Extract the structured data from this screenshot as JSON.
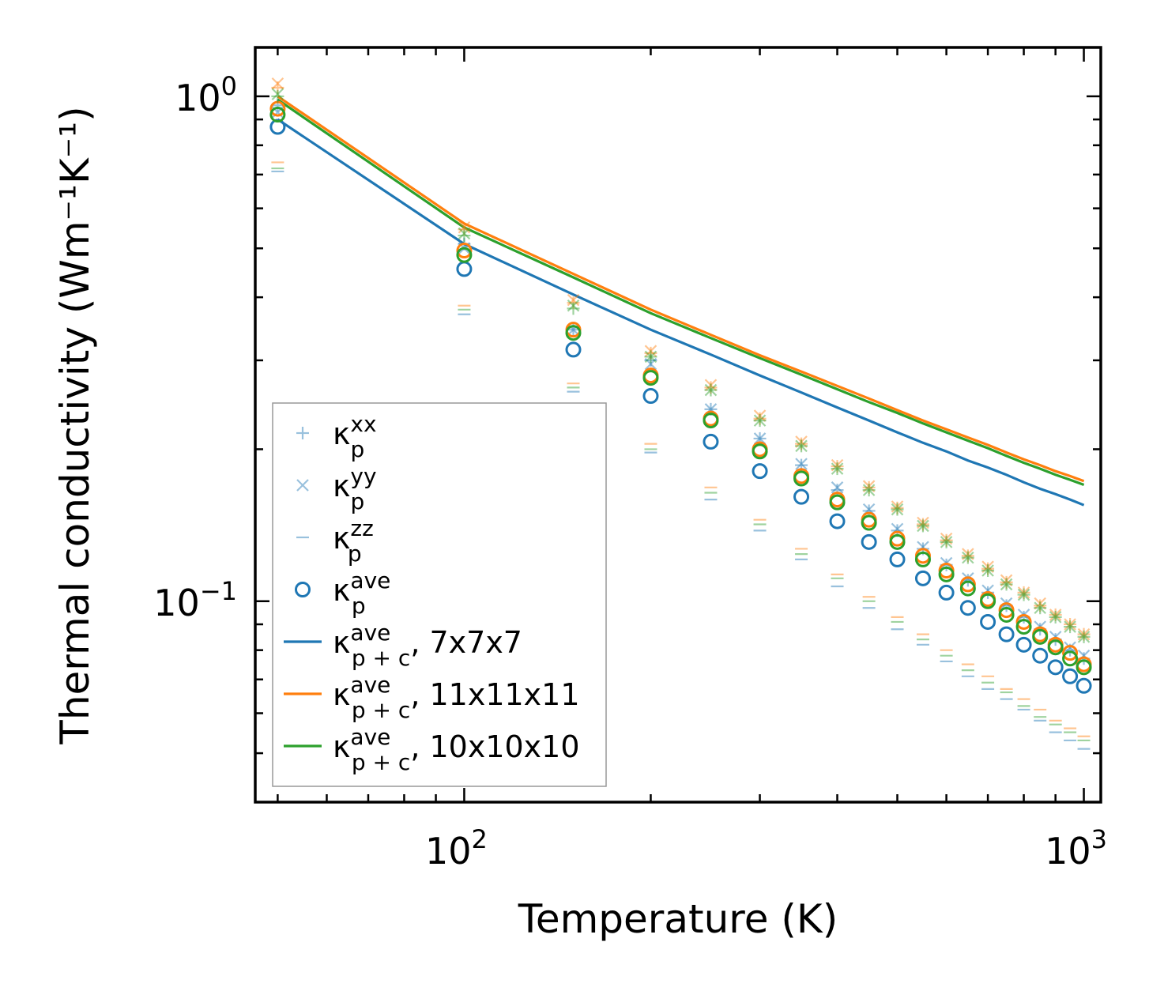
{
  "chart_data": {
    "type": "scatter",
    "title": "",
    "xlabel": "Temperature (K)",
    "ylabel": "Thermal conductivity (Wm⁻¹K⁻¹)",
    "xscale": "log",
    "yscale": "log",
    "xlim": [
      46,
      1065
    ],
    "ylim": [
      0.04,
      1.25
    ],
    "x_ticks": [
      {
        "value": 100,
        "base": "10",
        "exp": "2"
      },
      {
        "value": 1000,
        "base": "10",
        "exp": "3"
      }
    ],
    "y_ticks": [
      {
        "value": 1.0,
        "base": "10",
        "exp": "0"
      },
      {
        "value": 0.1,
        "base": "10",
        "exp": "−1"
      }
    ],
    "temperatures": [
      50,
      100,
      150,
      200,
      250,
      300,
      350,
      400,
      450,
      500,
      550,
      600,
      650,
      700,
      750,
      800,
      850,
      900,
      950,
      1000
    ],
    "series": [
      {
        "name": "kp_xx",
        "supercell": "7x7x7",
        "marker": "+",
        "color": "#1f77b4",
        "values": [
          0.96,
          0.51,
          0.345,
          0.3,
          0.24,
          0.21,
          0.186,
          0.166,
          0.151,
          0.138,
          0.127,
          0.118,
          0.11,
          0.104,
          0.098,
          0.093,
          0.088,
          0.084,
          0.08,
          0.077
        ]
      },
      {
        "name": "kp_yy",
        "supercell": "7x7x7",
        "marker": "x",
        "color": "#1f77b4",
        "values": [
          0.93,
          0.5,
          0.345,
          0.295,
          0.24,
          0.21,
          0.187,
          0.168,
          0.152,
          0.139,
          0.128,
          0.119,
          0.111,
          0.105,
          0.099,
          0.094,
          0.089,
          0.085,
          0.081,
          0.078
        ]
      },
      {
        "name": "kp_zz",
        "supercell": "7x7x7",
        "marker": "_",
        "color": "#1f77b4",
        "values": [
          0.71,
          0.37,
          0.26,
          0.197,
          0.159,
          0.138,
          0.121,
          0.107,
          0.097,
          0.088,
          0.082,
          0.076,
          0.071,
          0.067,
          0.064,
          0.061,
          0.058,
          0.055,
          0.053,
          0.051
        ]
      },
      {
        "name": "kp_ave",
        "supercell": "7x7x7",
        "marker": "o",
        "color": "#1f77b4",
        "values": [
          0.87,
          0.455,
          0.315,
          0.255,
          0.207,
          0.181,
          0.161,
          0.144,
          0.131,
          0.121,
          0.111,
          0.104,
          0.097,
          0.091,
          0.086,
          0.082,
          0.078,
          0.074,
          0.071,
          0.068
        ]
      },
      {
        "name": "kp_xx",
        "supercell": "11x11x11",
        "marker": "+",
        "color": "#ff7f0e",
        "values": [
          1.04,
          0.545,
          0.39,
          0.31,
          0.265,
          0.23,
          0.205,
          0.185,
          0.168,
          0.153,
          0.142,
          0.132,
          0.123,
          0.116,
          0.109,
          0.104,
          0.098,
          0.094,
          0.09,
          0.086
        ]
      },
      {
        "name": "kp_yy",
        "supercell": "11x11x11",
        "marker": "x",
        "color": "#ff7f0e",
        "values": [
          1.06,
          0.55,
          0.395,
          0.313,
          0.268,
          0.233,
          0.207,
          0.186,
          0.169,
          0.154,
          0.143,
          0.133,
          0.124,
          0.117,
          0.11,
          0.104,
          0.099,
          0.094,
          0.09,
          0.086
        ]
      },
      {
        "name": "kp_zz",
        "supercell": "11x11x11",
        "marker": "_",
        "color": "#ff7f0e",
        "values": [
          0.74,
          0.385,
          0.27,
          0.205,
          0.168,
          0.145,
          0.127,
          0.113,
          0.102,
          0.093,
          0.086,
          0.08,
          0.075,
          0.071,
          0.067,
          0.064,
          0.061,
          0.058,
          0.056,
          0.054
        ]
      },
      {
        "name": "kp_ave",
        "supercell": "11x11x11",
        "marker": "o",
        "color": "#ff7f0e",
        "values": [
          0.945,
          0.495,
          0.345,
          0.28,
          0.23,
          0.2,
          0.177,
          0.159,
          0.145,
          0.133,
          0.123,
          0.115,
          0.108,
          0.101,
          0.096,
          0.091,
          0.086,
          0.082,
          0.079,
          0.075
        ]
      },
      {
        "name": "kp_xx",
        "supercell": "10x10x10",
        "marker": "+",
        "color": "#2ca02c",
        "values": [
          1.0,
          0.53,
          0.38,
          0.305,
          0.262,
          0.228,
          0.203,
          0.183,
          0.166,
          0.152,
          0.141,
          0.131,
          0.122,
          0.115,
          0.108,
          0.103,
          0.097,
          0.093,
          0.089,
          0.085
        ]
      },
      {
        "name": "kp_yy",
        "supercell": "10x10x10",
        "marker": "x",
        "color": "#2ca02c",
        "values": [
          1.01,
          0.535,
          0.385,
          0.305,
          0.262,
          0.228,
          0.203,
          0.183,
          0.166,
          0.152,
          0.141,
          0.131,
          0.122,
          0.115,
          0.108,
          0.103,
          0.097,
          0.093,
          0.089,
          0.085
        ]
      },
      {
        "name": "kp_zz",
        "supercell": "10x10x10",
        "marker": "_",
        "color": "#2ca02c",
        "values": [
          0.72,
          0.378,
          0.265,
          0.2,
          0.164,
          0.142,
          0.124,
          0.111,
          0.1,
          0.091,
          0.084,
          0.078,
          0.073,
          0.069,
          0.066,
          0.062,
          0.059,
          0.057,
          0.055,
          0.053
        ]
      },
      {
        "name": "kp_ave",
        "supercell": "10x10x10",
        "marker": "o",
        "color": "#2ca02c",
        "values": [
          0.92,
          0.485,
          0.34,
          0.277,
          0.228,
          0.198,
          0.175,
          0.157,
          0.143,
          0.131,
          0.121,
          0.113,
          0.106,
          0.1,
          0.094,
          0.089,
          0.085,
          0.081,
          0.077,
          0.074
        ]
      },
      {
        "name": "kp+c_ave 7x7x7",
        "marker": "line",
        "color": "#1f77b4",
        "values": [
          0.9,
          0.51,
          0.405,
          0.345,
          0.308,
          0.28,
          0.259,
          0.242,
          0.228,
          0.216,
          0.206,
          0.198,
          0.19,
          0.184,
          0.178,
          0.172,
          0.167,
          0.163,
          0.159,
          0.155
        ]
      },
      {
        "name": "kp+c_ave 11x11x11",
        "marker": "line",
        "color": "#ff7f0e",
        "values": [
          1.0,
          0.56,
          0.445,
          0.378,
          0.337,
          0.307,
          0.285,
          0.267,
          0.252,
          0.239,
          0.228,
          0.219,
          0.211,
          0.204,
          0.197,
          0.191,
          0.186,
          0.181,
          0.177,
          0.173
        ]
      },
      {
        "name": "kp+c_ave 10x10x10",
        "marker": "line",
        "color": "#2ca02c",
        "values": [
          0.985,
          0.55,
          0.438,
          0.372,
          0.332,
          0.303,
          0.281,
          0.263,
          0.248,
          0.236,
          0.225,
          0.216,
          0.208,
          0.201,
          0.194,
          0.188,
          0.183,
          0.178,
          0.174,
          0.17
        ]
      }
    ],
    "legend": {
      "position": "lower-left",
      "entries": [
        {
          "marker": "+",
          "color": "#1f77b4",
          "sup": "xx",
          "sub": "p",
          "suffix": ""
        },
        {
          "marker": "x",
          "color": "#1f77b4",
          "sup": "yy",
          "sub": "p",
          "suffix": ""
        },
        {
          "marker": "_",
          "color": "#1f77b4",
          "sup": "zz",
          "sub": "p",
          "suffix": ""
        },
        {
          "marker": "o",
          "color": "#1f77b4",
          "sup": "ave",
          "sub": "p",
          "suffix": ""
        },
        {
          "marker": "line",
          "color": "#1f77b4",
          "sup": "ave",
          "sub": "p + c",
          "suffix": ", 7x7x7"
        },
        {
          "marker": "line",
          "color": "#ff7f0e",
          "sup": "ave",
          "sub": "p + c",
          "suffix": ", 11x11x11"
        },
        {
          "marker": "line",
          "color": "#2ca02c",
          "sup": "ave",
          "sub": "p + c",
          "suffix": ", 10x10x10"
        }
      ],
      "symbol": "κ"
    }
  }
}
